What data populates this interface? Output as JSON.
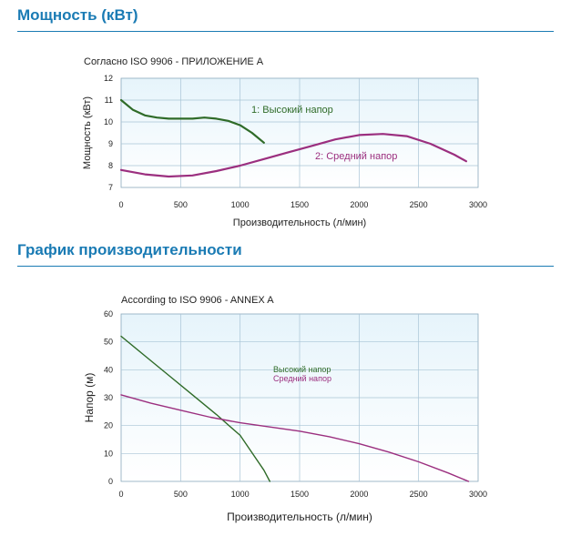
{
  "colors": {
    "heading": "#1a7bb4",
    "plot_bg_top": "#e6f4fb",
    "grid": "#a8c4d6",
    "high_head": "#2f6b28",
    "medium_head": "#9b2f7f"
  },
  "sections": [
    {
      "title": "Мощность (кВт)"
    },
    {
      "title": "График производительности"
    }
  ],
  "chart_data": [
    {
      "type": "line",
      "title": "Согласно ISO 9906 - ПРИЛОЖЕНИЕ А",
      "xlabel": "Производительность (л/мин)",
      "ylabel": "Мощность (кВт)",
      "xlim": [
        0,
        3000
      ],
      "ylim": [
        7,
        12
      ],
      "xticks": [
        "0",
        "500",
        "1000",
        "1500",
        "2000",
        "2500",
        "3000"
      ],
      "yticks": [
        "7",
        "8",
        "9",
        "10",
        "11",
        "12"
      ],
      "grid": true,
      "series": [
        {
          "name": "1: Высокий напор",
          "color": "#2f6b28",
          "x": [
            0,
            100,
            200,
            300,
            400,
            500,
            600,
            700,
            800,
            900,
            1000,
            1100,
            1200
          ],
          "y": [
            11.0,
            10.55,
            10.3,
            10.2,
            10.15,
            10.15,
            10.15,
            10.2,
            10.15,
            10.05,
            9.85,
            9.5,
            9.05
          ]
        },
        {
          "name": "2: Средний напор",
          "color": "#9b2f7f",
          "x": [
            0,
            200,
            400,
            600,
            800,
            1000,
            1200,
            1400,
            1600,
            1800,
            2000,
            2200,
            2400,
            2600,
            2800,
            2900
          ],
          "y": [
            7.8,
            7.6,
            7.5,
            7.55,
            7.75,
            8.0,
            8.3,
            8.6,
            8.9,
            9.2,
            9.4,
            9.45,
            9.35,
            9.0,
            8.5,
            8.2
          ]
        }
      ]
    },
    {
      "type": "line",
      "title": "According to ISO 9906 - ANNEX A",
      "xlabel": "Производительность (л/мин)",
      "ylabel": "Напор (м)",
      "xlim": [
        0,
        3000
      ],
      "ylim": [
        0,
        60
      ],
      "xticks": [
        "0",
        "500",
        "1000",
        "1500",
        "2000",
        "2500",
        "3000"
      ],
      "yticks": [
        "0",
        "10",
        "20",
        "30",
        "40",
        "50",
        "60"
      ],
      "grid": true,
      "legend": [
        "Высокий напор",
        "Средний напор"
      ],
      "series": [
        {
          "name": "Высокий напор",
          "color": "#2f6b28",
          "x": [
            0,
            200,
            400,
            600,
            800,
            1000,
            1200,
            1250
          ],
          "y": [
            52,
            45,
            38,
            31,
            24,
            16.5,
            4,
            0
          ]
        },
        {
          "name": "Средний напор",
          "color": "#9b2f7f",
          "x": [
            0,
            250,
            500,
            750,
            1000,
            1250,
            1500,
            1750,
            2000,
            2250,
            2500,
            2750,
            2920
          ],
          "y": [
            31,
            28,
            25.5,
            23,
            21,
            19.5,
            18,
            16,
            13.5,
            10.5,
            7,
            3,
            0
          ]
        }
      ]
    }
  ]
}
